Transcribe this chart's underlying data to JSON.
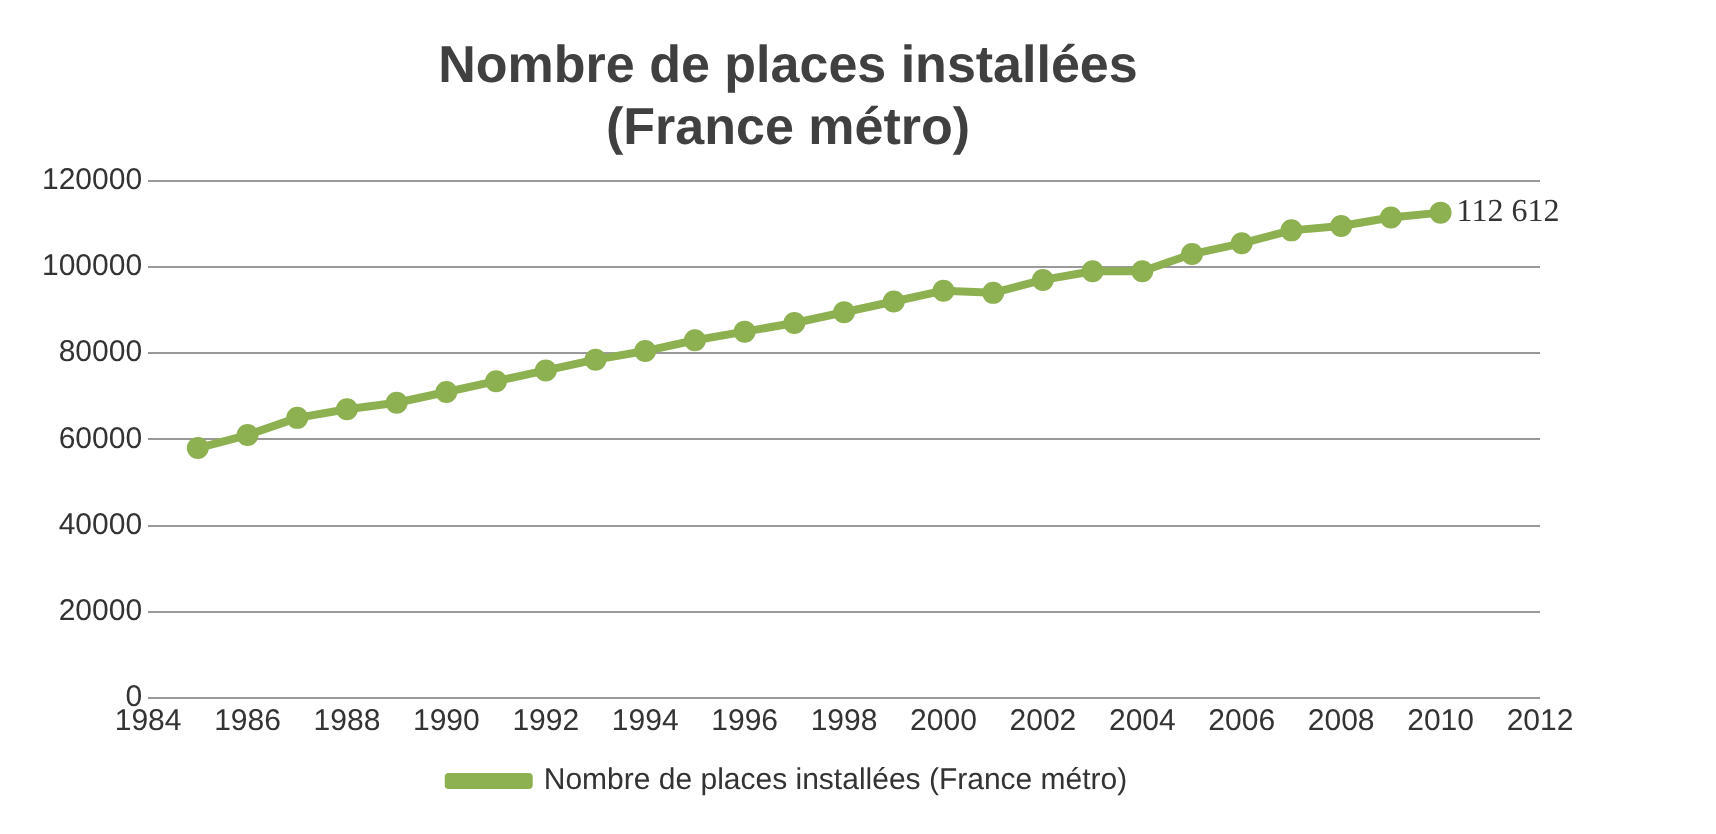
{
  "chart_data": {
    "type": "line",
    "title": "Nombre de places installées (France métro)",
    "x": [
      1985,
      1986,
      1987,
      1988,
      1989,
      1990,
      1991,
      1992,
      1993,
      1994,
      1995,
      1996,
      1997,
      1998,
      1999,
      2000,
      2001,
      2002,
      2003,
      2004,
      2005,
      2006,
      2007,
      2008,
      2009,
      2010
    ],
    "series": [
      {
        "name": "Nombre de places installées (France métro)",
        "color": "#8db050",
        "values": [
          58000,
          61000,
          65000,
          67000,
          68500,
          71000,
          73500,
          76000,
          78500,
          80500,
          83000,
          85000,
          87000,
          89500,
          92000,
          94500,
          94000,
          97000,
          99000,
          99000,
          103000,
          105500,
          108500,
          109500,
          111500,
          112612
        ],
        "value_labels": [
          null,
          null,
          null,
          null,
          null,
          null,
          null,
          null,
          null,
          null,
          null,
          null,
          null,
          null,
          null,
          null,
          null,
          null,
          null,
          null,
          null,
          null,
          null,
          null,
          null,
          "112 612"
        ]
      }
    ],
    "xlim": [
      1984,
      2012
    ],
    "xticks": [
      1984,
      1986,
      1988,
      1990,
      1992,
      1994,
      1996,
      1998,
      2000,
      2002,
      2004,
      2006,
      2008,
      2010,
      2012
    ],
    "ylim": [
      0,
      120000
    ],
    "yticks": [
      0,
      20000,
      40000,
      60000,
      80000,
      100000,
      120000
    ],
    "grid": "y",
    "legend": "bottom",
    "marker": "circle",
    "line_style": "solid"
  }
}
